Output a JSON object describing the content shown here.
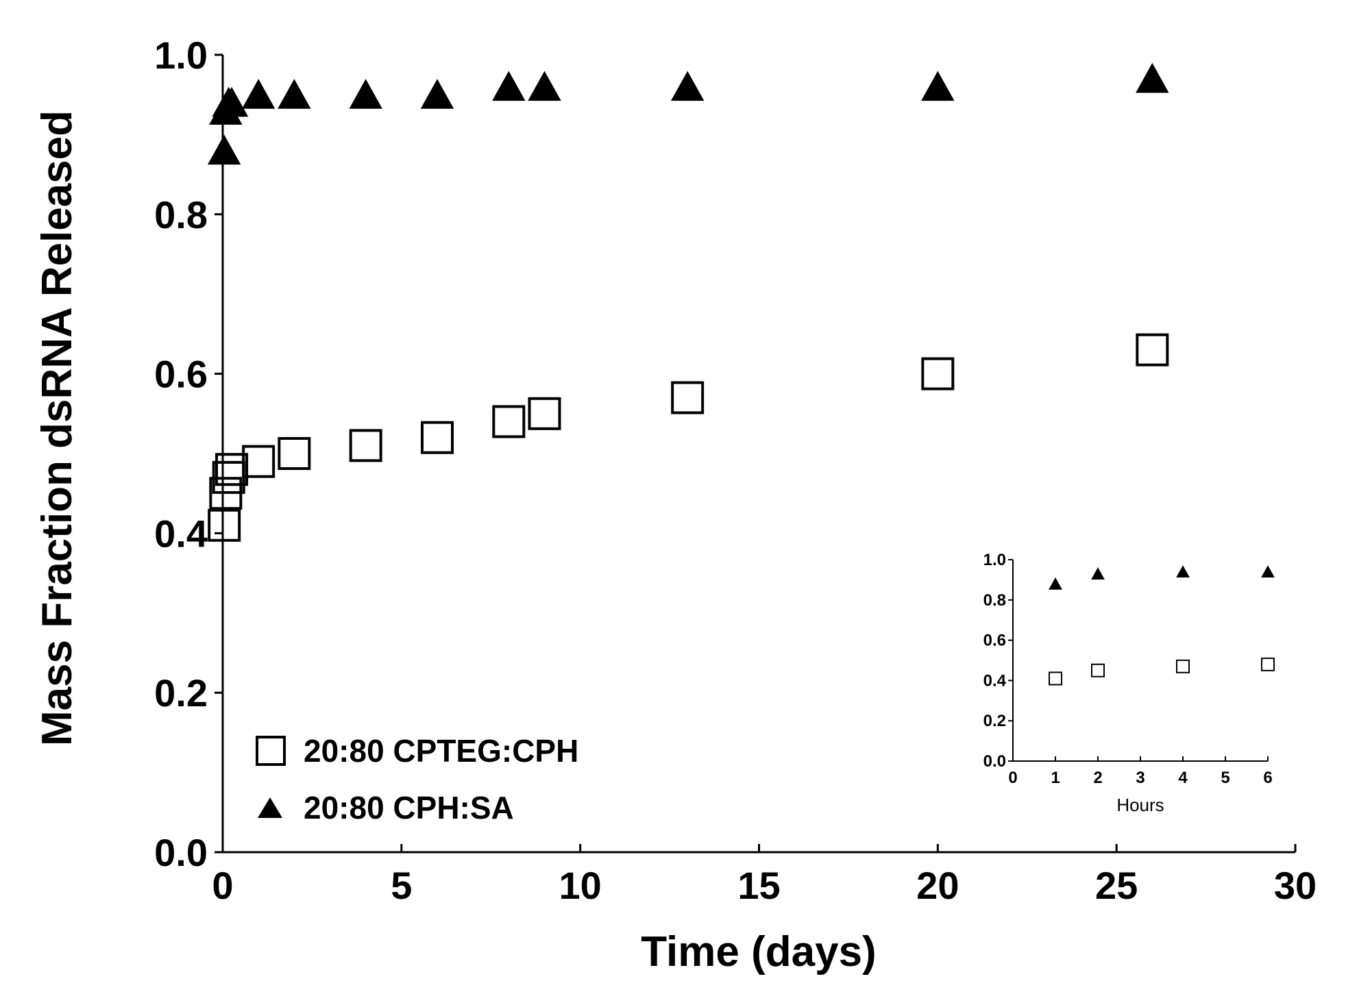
{
  "chart_data": [
    {
      "id": "main",
      "type": "scatter",
      "title": "",
      "xlabel": "Time (days)",
      "ylabel": "Mass Fraction dsRNA Released",
      "xlim": [
        0,
        30
      ],
      "ylim": [
        0,
        1.0
      ],
      "xticks": [
        0,
        5,
        10,
        15,
        20,
        25,
        30
      ],
      "yticks": [
        0.0,
        0.2,
        0.4,
        0.6,
        0.8,
        1.0
      ],
      "yticklabels": [
        "0.0",
        "0.2",
        "0.4",
        "0.6",
        "0.8",
        "1.0"
      ],
      "legend_position": "bottom-left",
      "series": [
        {
          "name": "20:80 CPTEG:CPH",
          "marker": "open-square",
          "x": [
            0.0417,
            0.0833,
            0.1667,
            0.25,
            1,
            2,
            4,
            6,
            8,
            9,
            13,
            20,
            26
          ],
          "y": [
            0.41,
            0.45,
            0.47,
            0.48,
            0.49,
            0.5,
            0.51,
            0.52,
            0.54,
            0.55,
            0.57,
            0.6,
            0.63
          ]
        },
        {
          "name": "20:80 CPH:SA",
          "marker": "filled-triangle",
          "x": [
            0.0417,
            0.0833,
            0.1667,
            0.25,
            1,
            2,
            4,
            6,
            8,
            9,
            13,
            20,
            26
          ],
          "y": [
            0.88,
            0.93,
            0.94,
            0.94,
            0.95,
            0.95,
            0.95,
            0.95,
            0.96,
            0.96,
            0.96,
            0.96,
            0.97
          ]
        }
      ]
    },
    {
      "id": "inset",
      "type": "scatter",
      "title": "",
      "xlabel": "Hours",
      "ylabel": "",
      "xlim": [
        0,
        6
      ],
      "ylim": [
        0,
        1.0
      ],
      "xticks": [
        0,
        1,
        2,
        3,
        4,
        5,
        6
      ],
      "yticks": [
        0.0,
        0.2,
        0.4,
        0.6,
        0.8,
        1.0
      ],
      "yticklabels": [
        "0.0",
        "0.2",
        "0.4",
        "0.6",
        "0.8",
        "1.0"
      ],
      "series": [
        {
          "name": "20:80 CPTEG:CPH",
          "marker": "open-square",
          "x": [
            1,
            2,
            4,
            6
          ],
          "y": [
            0.41,
            0.45,
            0.47,
            0.48
          ]
        },
        {
          "name": "20:80 CPH:SA",
          "marker": "filled-triangle",
          "x": [
            1,
            2,
            4,
            6
          ],
          "y": [
            0.88,
            0.93,
            0.94,
            0.94
          ]
        }
      ]
    }
  ]
}
